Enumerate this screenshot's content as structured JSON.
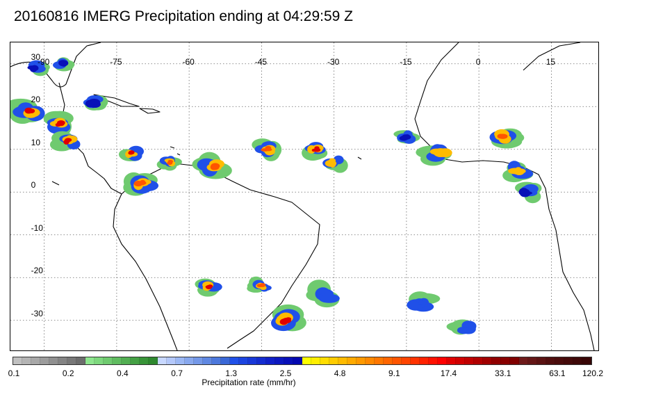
{
  "title": "20160816 IMERG Precipitation ending at 04:29:59 Z",
  "map": {
    "lon_labels": [
      "-90",
      "-75",
      "-60",
      "-45",
      "-30",
      "-15",
      "0",
      "15"
    ],
    "lat_labels": [
      "30",
      "20",
      "10",
      "0",
      "-10",
      "-20",
      "-30"
    ],
    "land_color": "#000000",
    "grid_style": "dotted"
  },
  "colorbar": {
    "label": "Precipitation rate (mm/hr)",
    "tick_labels": [
      "0.1",
      "0.2",
      "0.4",
      "0.7",
      "1.3",
      "2.5",
      "4.8",
      "9.1",
      "17.4",
      "33.1",
      "63.1",
      "120.2"
    ],
    "colors": [
      "#c0c0c0",
      "#b4b4b4",
      "#a8a8a8",
      "#9c9c9c",
      "#909090",
      "#848484",
      "#787878",
      "#6c6c6c",
      "#8ee68e",
      "#7ed87e",
      "#6fca6f",
      "#60bc60",
      "#52ae52",
      "#44a044",
      "#389438",
      "#2e882e",
      "#c8d8ff",
      "#b4c8fa",
      "#9cb8f4",
      "#88a8ee",
      "#7498e8",
      "#6088e2",
      "#4c78dc",
      "#3a68d6",
      "#2050e8",
      "#1c44e0",
      "#1838d8",
      "#142cd0",
      "#1020c8",
      "#0c18c0",
      "#0810b8",
      "#0408b0",
      "#ffff00",
      "#ffee00",
      "#ffdd00",
      "#ffcc00",
      "#ffbb00",
      "#ffaa00",
      "#ff9900",
      "#ff8800",
      "#ff7700",
      "#ff6600",
      "#ff5500",
      "#ff4400",
      "#ff3300",
      "#ff2200",
      "#ff1100",
      "#ff0000",
      "#e00000",
      "#d00000",
      "#c00000",
      "#b00000",
      "#a00000",
      "#900000",
      "#880000",
      "#800000",
      "#6e1a1a",
      "#641616",
      "#5a1212",
      "#500e0e",
      "#4a0c0c",
      "#440a0a",
      "#3e0808",
      "#380606"
    ]
  },
  "chart_data": {
    "type": "heatmap",
    "title": "20160816 IMERG Precipitation ending at 04:29:59 Z",
    "xlabel": "",
    "ylabel": "",
    "xlim": [
      -97,
      25
    ],
    "ylim": [
      -38,
      35
    ],
    "colorbar_label": "Precipitation rate (mm/hr)",
    "colorbar_ticks": [
      0.1,
      0.2,
      0.4,
      0.7,
      1.3,
      2.5,
      4.8,
      9.1,
      17.4,
      33.1,
      63.1,
      120.2
    ],
    "grid": true,
    "regions": [
      {
        "lon": -92,
        "lat": 29,
        "max_rate": 2.5
      },
      {
        "lon": -86,
        "lat": 30,
        "max_rate": 2.5
      },
      {
        "lon": -93,
        "lat": 19,
        "max_rate": 17.4
      },
      {
        "lon": -87,
        "lat": 16,
        "max_rate": 17.4
      },
      {
        "lon": -85,
        "lat": 12,
        "max_rate": 17.4
      },
      {
        "lon": -80,
        "lat": 21,
        "max_rate": 2.5
      },
      {
        "lon": -72,
        "lat": 9,
        "max_rate": 17.4
      },
      {
        "lon": -64,
        "lat": 7,
        "max_rate": 9.1
      },
      {
        "lon": -55,
        "lat": 6,
        "max_rate": 9.1
      },
      {
        "lon": -70,
        "lat": 2,
        "max_rate": 9.1
      },
      {
        "lon": -44,
        "lat": 10,
        "max_rate": 9.1
      },
      {
        "lon": -34,
        "lat": 10,
        "max_rate": 17.4
      },
      {
        "lon": -30,
        "lat": 7,
        "max_rate": 4.8
      },
      {
        "lon": -15,
        "lat": 13,
        "max_rate": 2.5
      },
      {
        "lon": -8,
        "lat": 9,
        "max_rate": 4.8
      },
      {
        "lon": 5,
        "lat": 13,
        "max_rate": 9.1
      },
      {
        "lon": 8,
        "lat": 5,
        "max_rate": 4.8
      },
      {
        "lon": 10,
        "lat": 0,
        "max_rate": 2.5
      },
      {
        "lon": -56,
        "lat": -22,
        "max_rate": 17.4
      },
      {
        "lon": -45,
        "lat": -22,
        "max_rate": 9.1
      },
      {
        "lon": -40,
        "lat": -30,
        "max_rate": 17.4
      },
      {
        "lon": -32,
        "lat": -24,
        "max_rate": 1.3
      },
      {
        "lon": -12,
        "lat": -26,
        "max_rate": 1.3
      },
      {
        "lon": -3,
        "lat": -32,
        "max_rate": 1.3
      }
    ]
  }
}
